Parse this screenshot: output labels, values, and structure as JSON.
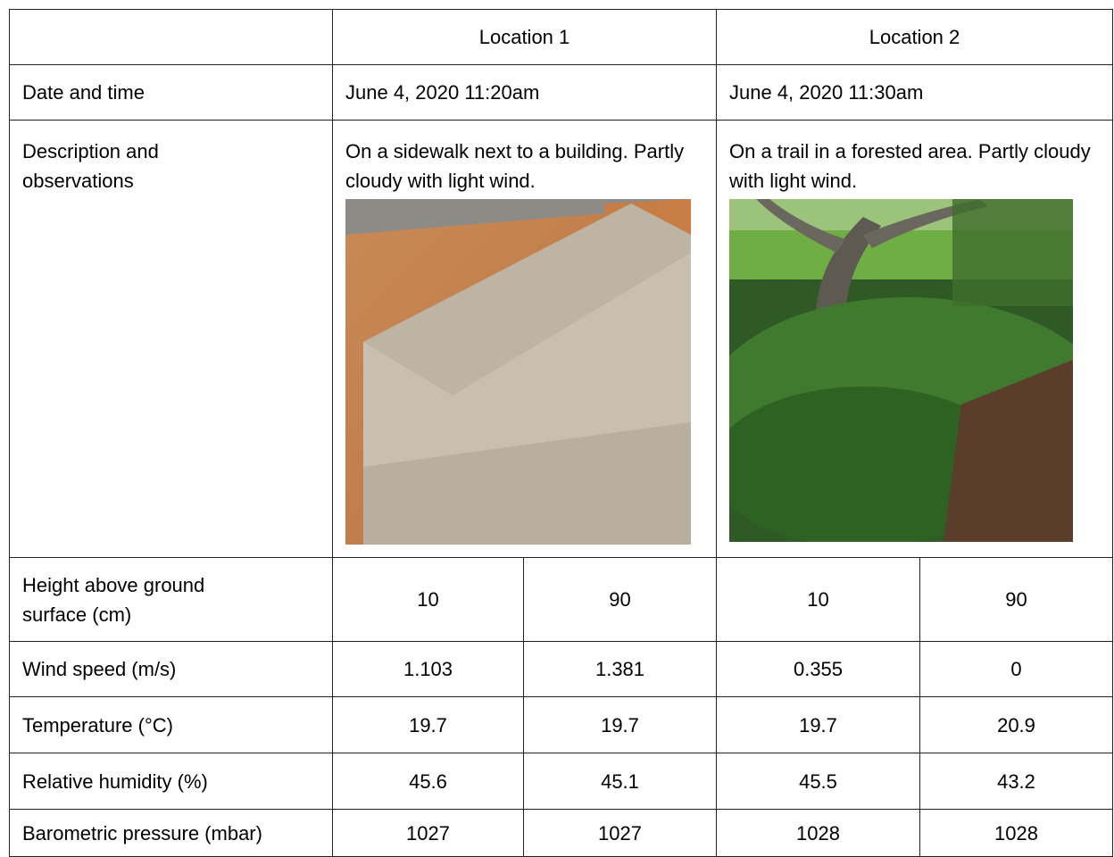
{
  "table": {
    "header": {
      "locations": [
        "Location 1",
        "Location 2"
      ]
    },
    "date_row": {
      "label": "Date and time",
      "values": [
        "June 4, 2020 11:20am",
        "June 4, 2020 11:30am"
      ]
    },
    "description_row": {
      "label": "Description and observations",
      "values": [
        "On a sidewalk next to a building. Partly cloudy with light wind.",
        "On a trail in a forested area. Partly cloudy with light wind."
      ]
    },
    "rows": [
      [
        "Height above ground surface (cm)",
        10,
        90,
        10,
        90
      ],
      [
        "Wind speed (m/s)",
        1.103,
        1.381,
        0.355,
        0
      ],
      [
        "Temperature (°C)",
        19.7,
        19.7,
        19.7,
        20.9
      ],
      [
        "Relative humidity (%)",
        45.6,
        45.1,
        45.5,
        43.2
      ],
      [
        "Barometric pressure (mbar)",
        1027,
        1027,
        1028,
        1028
      ]
    ]
  }
}
